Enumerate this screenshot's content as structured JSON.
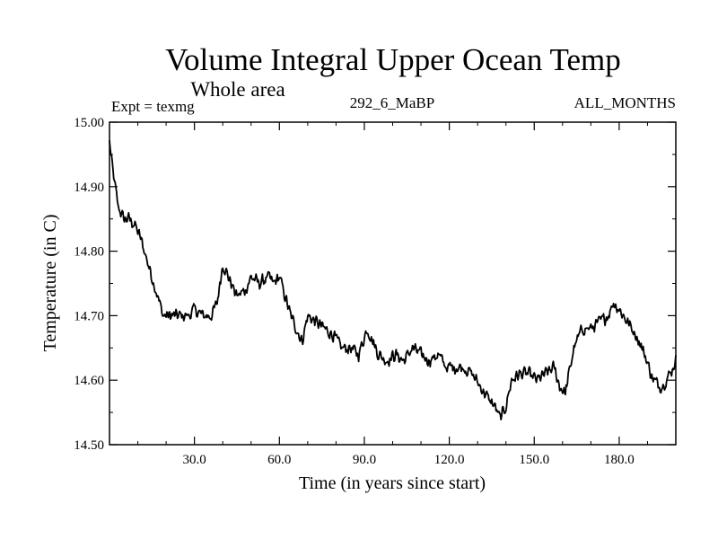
{
  "chart_data": {
    "type": "line",
    "title": "Volume Integral Upper Ocean Temp",
    "subtitle": "Whole area",
    "expt_label": "Expt = texmg",
    "run_label": "292_6_MaBP",
    "months_label": "ALL_MONTHS",
    "xlabel": "Time (in years since start)",
    "ylabel": "Temperature (in C)",
    "xlim": [
      0,
      200
    ],
    "ylim": [
      14.5,
      15.0
    ],
    "x_ticks": [
      30,
      60,
      90,
      120,
      150,
      180
    ],
    "x_tick_labels": [
      "30.0",
      "60.0",
      "90.0",
      "120.0",
      "150.0",
      "180.0"
    ],
    "y_ticks": [
      14.5,
      14.6,
      14.7,
      14.8,
      14.9,
      15.0
    ],
    "y_tick_labels": [
      "14.50",
      "14.60",
      "14.70",
      "14.80",
      "14.90",
      "15.00"
    ],
    "grid": false,
    "series": [
      {
        "name": "Volume integral upper ocean temperature",
        "color": "#000000",
        "anchor_x": [
          0,
          1,
          3,
          5,
          7,
          9,
          11,
          13,
          15,
          17,
          19,
          22,
          25,
          28,
          30,
          33,
          36,
          38,
          40,
          43,
          45,
          48,
          50,
          53,
          56,
          58,
          60,
          62,
          64,
          66,
          68,
          70,
          73,
          76,
          79,
          82,
          85,
          88,
          91,
          93,
          95,
          98,
          101,
          104,
          107,
          110,
          113,
          116,
          119,
          122,
          125,
          128,
          131,
          134,
          136,
          138,
          140,
          142,
          145,
          148,
          151,
          154,
          157,
          159,
          161,
          164,
          167,
          170,
          173,
          176,
          178,
          180,
          183,
          186,
          189,
          192,
          195,
          198,
          200
        ],
        "anchor_y": [
          14.97,
          14.93,
          14.87,
          14.85,
          14.85,
          14.84,
          14.82,
          14.79,
          14.76,
          14.73,
          14.7,
          14.7,
          14.7,
          14.7,
          14.71,
          14.7,
          14.7,
          14.72,
          14.78,
          14.75,
          14.73,
          14.74,
          14.76,
          14.75,
          14.76,
          14.75,
          14.76,
          14.73,
          14.7,
          14.68,
          14.66,
          14.7,
          14.69,
          14.68,
          14.67,
          14.65,
          14.65,
          14.64,
          14.68,
          14.66,
          14.64,
          14.63,
          14.64,
          14.63,
          14.65,
          14.64,
          14.63,
          14.64,
          14.62,
          14.62,
          14.62,
          14.61,
          14.59,
          14.57,
          14.56,
          14.54,
          14.56,
          14.6,
          14.61,
          14.61,
          14.6,
          14.61,
          14.62,
          14.59,
          14.58,
          14.65,
          14.68,
          14.68,
          14.69,
          14.7,
          14.72,
          14.71,
          14.69,
          14.67,
          14.64,
          14.6,
          14.59,
          14.61,
          14.63
        ],
        "noise_amplitude": 0.012,
        "sample_step": 0.25
      }
    ]
  }
}
